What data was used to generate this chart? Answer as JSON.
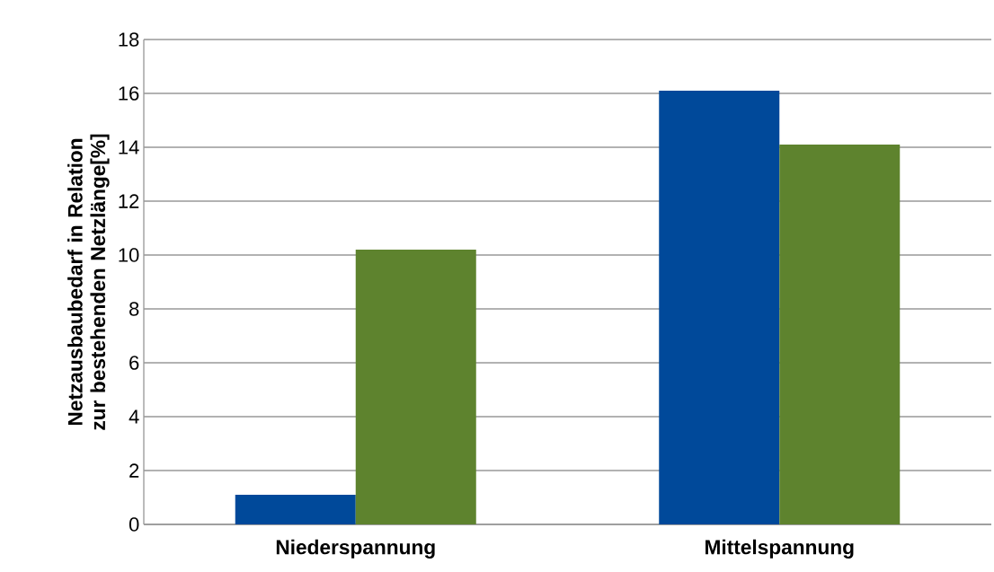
{
  "chart_data": {
    "type": "bar",
    "ylabel": "Netzausbaubedarf  in Relation zur bestehenden Netzlänge[%]",
    "categories": [
      "Niederspannung",
      "Mittelspannung"
    ],
    "series": [
      {
        "color": "#00499a",
        "values": [
          1.1,
          16.1
        ]
      },
      {
        "color": "#5e832e",
        "values": [
          10.2,
          14.1
        ]
      }
    ],
    "ylim": [
      0,
      18
    ],
    "yticks": [
      0,
      2,
      4,
      6,
      8,
      10,
      12,
      14,
      16,
      18
    ],
    "grid": "y"
  }
}
